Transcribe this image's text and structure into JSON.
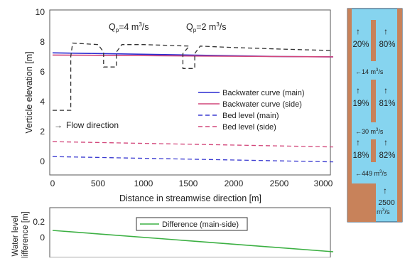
{
  "main_chart": {
    "xlabel": "Distance in streamwise direction [m]",
    "ylabel": "Verticle elevation [m]",
    "xticks": [
      "0",
      "500",
      "1000",
      "1500",
      "2000",
      "2500",
      "3000"
    ],
    "yticks": [
      "0",
      "2",
      "4",
      "6",
      "8",
      "10"
    ],
    "xlim": [
      0,
      3080
    ],
    "ylim": [
      -1,
      10
    ],
    "annotations": {
      "qp_left": {
        "prefix": "Q",
        "sub": "p",
        "value": "=4 m",
        "sup": "3",
        "suffix": "/s"
      },
      "qp_right": {
        "prefix": "Q",
        "sub": "p",
        "value": "=2 m",
        "sup": "3",
        "suffix": "/s"
      },
      "flow_direction": "Flow direction",
      "flow_arrow": "→"
    },
    "legend": [
      {
        "label": "Backwater curve (main)",
        "color": "#2b2bd0",
        "dash": "solid"
      },
      {
        "label": "Backwater curve (side)",
        "color": "#d2467a",
        "dash": "solid"
      },
      {
        "label": "Bed level (main)",
        "color": "#3a3ad0",
        "dash": "dashed"
      },
      {
        "label": "Bed level (side)",
        "color": "#d2467a",
        "dash": "dashed"
      }
    ]
  },
  "chart_data": [
    {
      "type": "line",
      "xlabel": "Distance in streamwise direction [m]",
      "ylabel": "Verticle elevation [m]",
      "xlim": [
        0,
        3080
      ],
      "ylim": [
        -1,
        10
      ],
      "series": [
        {
          "name": "Backwater curve (main)",
          "color": "#2b2bd0",
          "style": "solid",
          "x": [
            0,
            500,
            1000,
            1500,
            2000,
            2500,
            3080
          ],
          "y": [
            7.25,
            7.2,
            7.15,
            7.1,
            7.05,
            7.0,
            6.98
          ]
        },
        {
          "name": "Backwater curve (side)",
          "color": "#d2467a",
          "style": "solid",
          "x": [
            0,
            500,
            1000,
            1500,
            2000,
            2500,
            3080
          ],
          "y": [
            7.1,
            7.08,
            7.06,
            7.04,
            7.02,
            7.0,
            6.98
          ]
        },
        {
          "name": "Bed level (main)",
          "color": "#3a3ad0",
          "style": "dashed",
          "x": [
            0,
            3080
          ],
          "y": [
            0.3,
            -0.05
          ]
        },
        {
          "name": "Bed level (side)",
          "color": "#d2467a",
          "style": "dashed",
          "x": [
            0,
            3080
          ],
          "y": [
            1.3,
            0.95
          ]
        },
        {
          "name": "",
          "color": "#333",
          "style": "dashed",
          "x": [
            0,
            200,
            200,
            220,
            500,
            560,
            560,
            700,
            700,
            760,
            1000,
            1500,
            1430,
            1430,
            1560,
            1560,
            1620,
            2000,
            2500,
            3080
          ],
          "y": [
            3.4,
            3.4,
            7.0,
            7.9,
            7.8,
            7.3,
            6.3,
            6.3,
            7.3,
            7.8,
            7.8,
            7.7,
            7.2,
            6.2,
            6.2,
            7.2,
            7.7,
            7.6,
            7.5,
            7.4
          ]
        }
      ]
    },
    {
      "type": "line",
      "xlabel": "",
      "ylabel": "Water level difference [m]",
      "xlim": [
        0,
        3080
      ],
      "ylim": [
        -0.05,
        0.3
      ],
      "yticks": [
        "0",
        "0.2"
      ],
      "series": [
        {
          "name": "Difference (main-side)",
          "color": "#3cb043",
          "style": "solid",
          "x": [
            0,
            3080
          ],
          "y": [
            0.15,
            0.0
          ]
        }
      ]
    }
  ],
  "bottom_chart": {
    "ylabel_line1": "Water level",
    "ylabel_line2": "difference [m]",
    "yticks": [
      "0",
      "0.2"
    ],
    "legend_label": "Difference (main-side)"
  },
  "right_panel": {
    "row1": {
      "left_pct": "20%",
      "right_pct": "80%",
      "flow": "14 m",
      "sup": "3",
      "unit": "/s"
    },
    "row2": {
      "left_pct": "19%",
      "right_pct": "81%",
      "flow": "30 m",
      "sup": "3",
      "unit": "/s"
    },
    "row3": {
      "left_pct": "18%",
      "right_pct": "82%",
      "flow": "449 m",
      "sup": "3",
      "unit": "/s"
    },
    "bottom": {
      "value": "2500",
      "unit": "m",
      "sup": "3",
      "unit2": "/s"
    },
    "up_arrow": "↑",
    "left_arrow": "←"
  },
  "colors": {
    "water": "#86d4ef",
    "bank": "#c8825a",
    "panel_border": "#2a4b6b"
  }
}
